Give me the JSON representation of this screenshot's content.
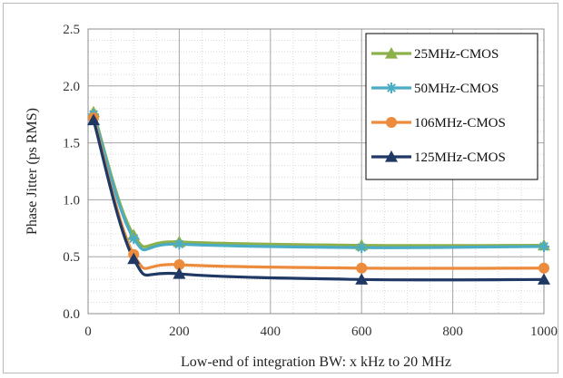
{
  "chart_data": {
    "type": "line",
    "xlabel": "Low-end of integration BW: x kHz to 20 MHz",
    "ylabel": "Phase Jitter (ps RMS)",
    "xlim": [
      0,
      1000
    ],
    "ylim": [
      0,
      2.5
    ],
    "x_ticks": [
      "0",
      "200",
      "400",
      "600",
      "800",
      "1000"
    ],
    "y_ticks": [
      "0.0",
      "0.5",
      "1.0",
      "1.5",
      "2.0",
      "2.5"
    ],
    "grid": true,
    "legend_position": "top-right",
    "x": [
      12,
      100,
      200,
      600,
      1000
    ],
    "series": [
      {
        "name": "25MHz-CMOS",
        "values": [
          1.77,
          0.69,
          0.63,
          0.6,
          0.6
        ],
        "color": "#8db04a",
        "marker": "triangle"
      },
      {
        "name": "50MHz-CMOS",
        "values": [
          1.75,
          0.66,
          0.61,
          0.58,
          0.59
        ],
        "color": "#4bacc6",
        "marker": "asterisk"
      },
      {
        "name": "106MHz-CMOS",
        "values": [
          1.72,
          0.52,
          0.43,
          0.4,
          0.4
        ],
        "color": "#ed8b3c",
        "marker": "circle"
      },
      {
        "name": "125MHz-CMOS",
        "values": [
          1.7,
          0.48,
          0.35,
          0.3,
          0.3
        ],
        "color": "#1f3864",
        "marker": "triangle"
      }
    ]
  }
}
